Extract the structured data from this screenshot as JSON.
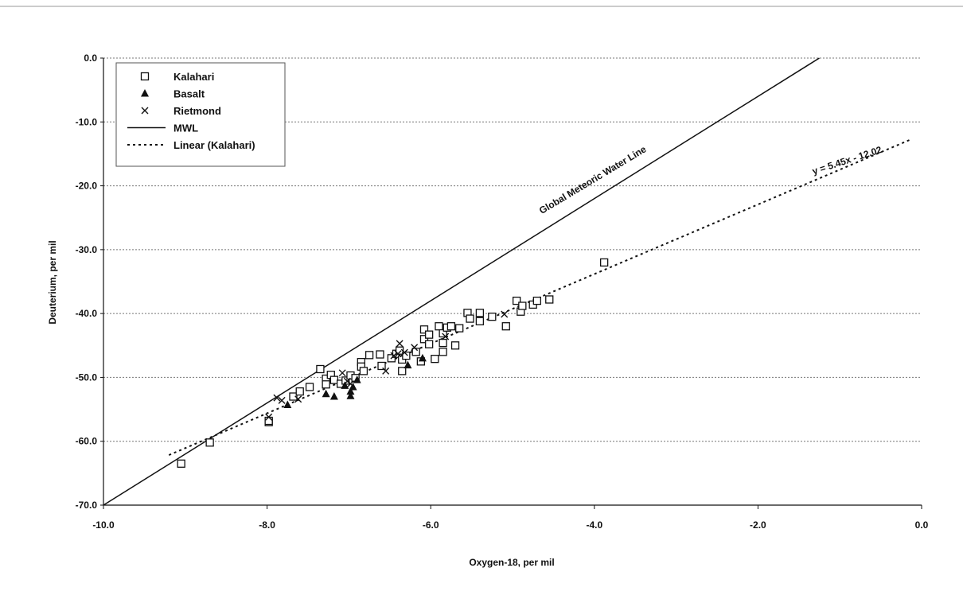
{
  "chart_data": {
    "type": "scatter",
    "xlabel": "Oxygen-18, per mil",
    "ylabel": "Deuterium, per mil",
    "xlim": [
      -10.0,
      0.0
    ],
    "ylim": [
      -70.0,
      0.0
    ],
    "x_ticks": [
      -10.0,
      -8.0,
      -6.0,
      -4.0,
      -2.0,
      0.0
    ],
    "x_tick_labels": [
      "-10.0",
      "-8.0",
      "-6.0",
      "-4.0",
      "-2.0",
      "0.0"
    ],
    "y_ticks": [
      0,
      -10,
      -20,
      -30,
      -40,
      -50,
      -60,
      -70
    ],
    "y_tick_labels": [
      "0.0",
      "-10.0",
      "-20.0",
      "-30.0",
      "-40.0",
      "-50.0",
      "-60.0",
      "-70.0"
    ],
    "grid": "horizontal dashed",
    "legend_position": "top-left",
    "series": [
      {
        "name": "Kalahari",
        "marker": "open-square",
        "color": "#111111",
        "points": [
          [
            -9.05,
            -63.5
          ],
          [
            -8.7,
            -60.2
          ],
          [
            -7.98,
            -57.0
          ],
          [
            -7.98,
            -56.8
          ],
          [
            -7.68,
            -53.0
          ],
          [
            -7.6,
            -52.2
          ],
          [
            -7.48,
            -51.5
          ],
          [
            -7.35,
            -48.7
          ],
          [
            -7.28,
            -50.2
          ],
          [
            -7.28,
            -51.1
          ],
          [
            -7.22,
            -49.6
          ],
          [
            -7.18,
            -50.4
          ],
          [
            -7.1,
            -51.0
          ],
          [
            -7.04,
            -50.5
          ],
          [
            -6.98,
            -49.7
          ],
          [
            -6.92,
            -50.1
          ],
          [
            -6.85,
            -47.6
          ],
          [
            -6.85,
            -48.3
          ],
          [
            -6.82,
            -49.0
          ],
          [
            -6.75,
            -46.5
          ],
          [
            -6.62,
            -46.4
          ],
          [
            -6.6,
            -48.2
          ],
          [
            -6.48,
            -47.0
          ],
          [
            -6.42,
            -46.3
          ],
          [
            -6.38,
            -45.8
          ],
          [
            -6.35,
            -47.2
          ],
          [
            -6.35,
            -49.0
          ],
          [
            -6.3,
            -46.6
          ],
          [
            -6.18,
            -46.0
          ],
          [
            -6.12,
            -47.5
          ],
          [
            -6.08,
            -42.5
          ],
          [
            -6.08,
            -44.0
          ],
          [
            -6.02,
            -43.3
          ],
          [
            -6.02,
            -44.8
          ],
          [
            -5.95,
            -47.1
          ],
          [
            -5.9,
            -42.0
          ],
          [
            -5.85,
            -43.1
          ],
          [
            -5.85,
            -44.6
          ],
          [
            -5.85,
            -46.0
          ],
          [
            -5.8,
            -42.2
          ],
          [
            -5.75,
            -42.0
          ],
          [
            -5.7,
            -45.0
          ],
          [
            -5.65,
            -42.3
          ],
          [
            -5.55,
            -39.9
          ],
          [
            -5.52,
            -40.8
          ],
          [
            -5.4,
            -39.9
          ],
          [
            -5.4,
            -41.2
          ],
          [
            -5.25,
            -40.5
          ],
          [
            -5.08,
            -42.0
          ],
          [
            -4.95,
            -38.0
          ],
          [
            -4.9,
            -39.7
          ],
          [
            -4.88,
            -38.8
          ],
          [
            -4.75,
            -38.6
          ],
          [
            -4.7,
            -38.0
          ],
          [
            -4.55,
            -37.8
          ],
          [
            -3.88,
            -32.0
          ]
        ]
      },
      {
        "name": "Basalt",
        "marker": "filled-triangle",
        "color": "#111111",
        "points": [
          [
            -7.75,
            -54.3
          ],
          [
            -7.28,
            -52.6
          ],
          [
            -7.18,
            -53.0
          ],
          [
            -7.05,
            -51.3
          ],
          [
            -6.98,
            -52.9
          ],
          [
            -6.98,
            -52.2
          ],
          [
            -6.95,
            -51.5
          ],
          [
            -6.9,
            -50.4
          ],
          [
            -6.28,
            -48.1
          ],
          [
            -6.1,
            -47.0
          ]
        ]
      },
      {
        "name": "Rietmond",
        "marker": "x",
        "color": "#111111",
        "points": [
          [
            -7.98,
            -56.2
          ],
          [
            -7.88,
            -53.2
          ],
          [
            -7.82,
            -53.6
          ],
          [
            -7.62,
            -53.4
          ],
          [
            -7.08,
            -49.3
          ],
          [
            -7.02,
            -50.6
          ],
          [
            -6.98,
            -51.0
          ],
          [
            -6.55,
            -49.0
          ],
          [
            -6.45,
            -46.6
          ],
          [
            -6.4,
            -46.3
          ],
          [
            -6.38,
            -44.7
          ],
          [
            -6.32,
            -46.1
          ],
          [
            -6.2,
            -45.3
          ],
          [
            -5.82,
            -43.6
          ],
          [
            -5.1,
            -40.1
          ]
        ]
      },
      {
        "name": "MWL",
        "type": "line",
        "style": "solid",
        "color": "#111111",
        "x": [
          -10.0,
          -1.25
        ],
        "y": [
          -70.0,
          0.0
        ]
      },
      {
        "name": "Linear (Kalahari)",
        "type": "line",
        "style": "dotted",
        "color": "#111111",
        "x": [
          -9.2,
          -0.15
        ],
        "y": [
          -62.16,
          -12.84
        ]
      }
    ],
    "annotations": [
      {
        "text": "Global Meteoric Water Line",
        "x": -4.0,
        "y": -19.5,
        "angle_deg": -31.0
      },
      {
        "text": "y = 5.45x - 12.02",
        "x": -0.9,
        "y": -16.5,
        "angle_deg": -18.0
      }
    ]
  }
}
